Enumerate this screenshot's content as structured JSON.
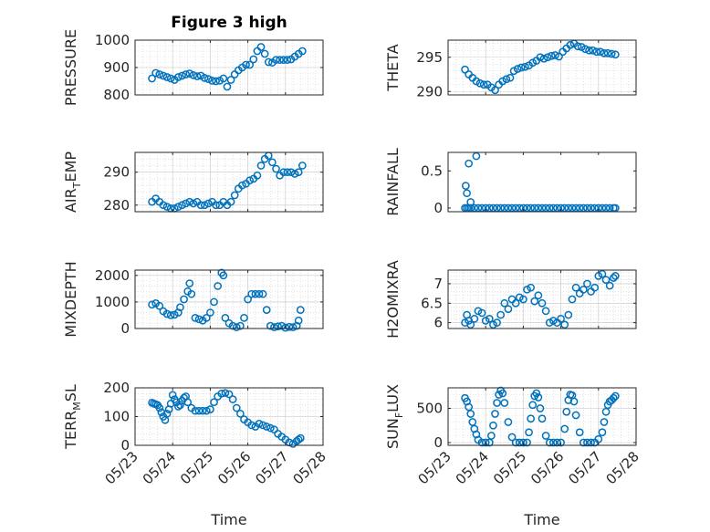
{
  "figure": {
    "title": "Figure 3 high",
    "xlabel": "Time",
    "x_ticklabels": [
      "05/23",
      "05/24",
      "05/25",
      "05/26",
      "05/27",
      "05/28"
    ],
    "marker_color": "#0072bd"
  },
  "chart_data": [
    {
      "id": "pressure",
      "type": "scatter",
      "ylabel": "PRESSURE",
      "ylim": [
        800,
        1000
      ],
      "yticks": [
        800,
        900,
        1000
      ],
      "xlim": [
        0,
        5
      ],
      "grid": true,
      "x": [
        0.45,
        0.55,
        0.65,
        0.75,
        0.85,
        0.95,
        1.05,
        1.15,
        1.25,
        1.35,
        1.45,
        1.55,
        1.65,
        1.75,
        1.85,
        1.95,
        2.05,
        2.15,
        2.25,
        2.35,
        2.45,
        2.55,
        2.65,
        2.75,
        2.85,
        2.95,
        3.05,
        3.15,
        3.25,
        3.35,
        3.45,
        3.55,
        3.65,
        3.75,
        3.85,
        3.95,
        4.05,
        4.15,
        4.25,
        4.35,
        4.45
      ],
      "y": [
        860,
        880,
        875,
        870,
        865,
        860,
        855,
        865,
        870,
        875,
        878,
        872,
        868,
        870,
        862,
        858,
        852,
        850,
        852,
        860,
        830,
        855,
        875,
        890,
        900,
        910,
        910,
        930,
        960,
        975,
        950,
        920,
        918,
        928,
        928,
        928,
        928,
        930,
        940,
        950,
        960
      ]
    },
    {
      "id": "theta",
      "type": "scatter",
      "ylabel": "THETA",
      "ylim": [
        289.5,
        297.5
      ],
      "yticks": [
        290,
        295
      ],
      "xlim": [
        0,
        5
      ],
      "grid": true,
      "x": [
        0.45,
        0.55,
        0.65,
        0.75,
        0.85,
        0.95,
        1.05,
        1.15,
        1.25,
        1.35,
        1.45,
        1.55,
        1.65,
        1.75,
        1.85,
        1.95,
        2.05,
        2.15,
        2.25,
        2.35,
        2.45,
        2.55,
        2.65,
        2.75,
        2.85,
        2.95,
        3.05,
        3.15,
        3.25,
        3.35,
        3.45,
        3.55,
        3.65,
        3.75,
        3.85,
        3.95,
        4.05,
        4.15,
        4.25,
        4.35,
        4.45
      ],
      "y": [
        293.2,
        292.5,
        292.0,
        291.5,
        291.2,
        291.0,
        291.0,
        290.6,
        290.2,
        291.0,
        291.5,
        291.8,
        292.0,
        293.0,
        293.3,
        293.5,
        293.6,
        293.8,
        294.2,
        294.5,
        295.0,
        294.8,
        295.0,
        295.2,
        295.3,
        295.1,
        295.8,
        296.3,
        296.8,
        297.0,
        296.6,
        296.5,
        296.2,
        296.0,
        296.0,
        295.8,
        295.8,
        295.6,
        295.6,
        295.5,
        295.4
      ]
    },
    {
      "id": "air_temp",
      "type": "scatter",
      "ylabel": "AIR_TEMP",
      "ylim": [
        278,
        296
      ],
      "yticks": [
        280,
        290
      ],
      "xlim": [
        0,
        5
      ],
      "grid": true,
      "x": [
        0.45,
        0.55,
        0.65,
        0.75,
        0.85,
        0.95,
        1.05,
        1.15,
        1.25,
        1.35,
        1.45,
        1.55,
        1.65,
        1.75,
        1.85,
        1.95,
        2.05,
        2.15,
        2.25,
        2.35,
        2.45,
        2.55,
        2.65,
        2.75,
        2.85,
        2.95,
        3.05,
        3.15,
        3.25,
        3.35,
        3.45,
        3.55,
        3.65,
        3.75,
        3.85,
        3.95,
        4.05,
        4.15,
        4.25,
        4.35,
        4.45
      ],
      "y": [
        281,
        282,
        281,
        280,
        279.5,
        279,
        279,
        279.5,
        280,
        280.5,
        281,
        280.5,
        281,
        280,
        280,
        280.5,
        281,
        280,
        280,
        281,
        280,
        281,
        283,
        285,
        286,
        286.5,
        287.5,
        288,
        289,
        292,
        294,
        295,
        293,
        291,
        289,
        290,
        290,
        290,
        289.5,
        290,
        292
      ]
    },
    {
      "id": "rainfall",
      "type": "scatter",
      "ylabel": "RAINFALL",
      "ylim": [
        -0.05,
        0.75
      ],
      "yticks": [
        0,
        0.5
      ],
      "xlim": [
        0,
        5
      ],
      "grid": false,
      "x": [
        0.45,
        0.5,
        0.55,
        0.6,
        0.7,
        0.8,
        0.9,
        1.0,
        1.1,
        1.2,
        1.3,
        1.4,
        1.5,
        1.6,
        1.7,
        1.8,
        1.9,
        2.0,
        2.1,
        2.2,
        2.3,
        2.4,
        2.5,
        2.6,
        2.7,
        2.8,
        2.9,
        3.0,
        3.1,
        3.2,
        3.3,
        3.4,
        3.5,
        3.6,
        3.7,
        3.8,
        3.9,
        4.0,
        4.1,
        4.2,
        4.3,
        4.4,
        4.45,
        0.47,
        0.5,
        0.55,
        0.6,
        0.75
      ],
      "y": [
        0,
        0,
        0,
        0,
        0,
        0,
        0,
        0,
        0,
        0,
        0,
        0,
        0,
        0,
        0,
        0,
        0,
        0,
        0,
        0,
        0,
        0,
        0,
        0,
        0,
        0,
        0,
        0,
        0,
        0,
        0,
        0,
        0,
        0,
        0,
        0,
        0,
        0,
        0,
        0,
        0,
        0,
        0,
        0.3,
        0.2,
        0.6,
        0.08,
        0.7
      ]
    },
    {
      "id": "mixdepth",
      "type": "scatter",
      "ylabel": "MIXDEPTH",
      "ylim": [
        0,
        2200
      ],
      "yticks": [
        0,
        1000,
        2000
      ],
      "xlim": [
        0,
        5
      ],
      "grid": true,
      "x": [
        0.45,
        0.55,
        0.65,
        0.75,
        0.85,
        0.95,
        1.05,
        1.15,
        1.2,
        1.3,
        1.4,
        1.45,
        1.5,
        1.6,
        1.7,
        1.8,
        1.9,
        2.0,
        2.1,
        2.2,
        2.3,
        2.35,
        2.4,
        2.5,
        2.6,
        2.7,
        2.8,
        2.9,
        3.0,
        3.1,
        3.2,
        3.3,
        3.4,
        3.5,
        3.6,
        3.7,
        3.8,
        3.9,
        4.0,
        4.1,
        4.2,
        4.3,
        4.35,
        4.4
      ],
      "y": [
        900,
        950,
        850,
        650,
        550,
        500,
        520,
        600,
        800,
        1100,
        1400,
        1700,
        1300,
        400,
        350,
        300,
        400,
        600,
        1000,
        1600,
        2100,
        2000,
        400,
        200,
        100,
        50,
        100,
        400,
        1100,
        1300,
        1300,
        1300,
        1300,
        700,
        100,
        50,
        80,
        100,
        30,
        60,
        50,
        100,
        300,
        700
      ]
    },
    {
      "id": "h2omixra",
      "type": "scatter",
      "ylabel": "H2OMIXRA",
      "ylim": [
        5.85,
        7.35
      ],
      "yticks": [
        6,
        6.5,
        7
      ],
      "xlim": [
        0,
        5
      ],
      "grid": true,
      "x": [
        0.45,
        0.5,
        0.55,
        0.6,
        0.7,
        0.8,
        0.9,
        1.0,
        1.1,
        1.2,
        1.3,
        1.4,
        1.5,
        1.6,
        1.7,
        1.8,
        1.9,
        2.0,
        2.1,
        2.2,
        2.3,
        2.4,
        2.5,
        2.6,
        2.7,
        2.8,
        2.9,
        3.0,
        3.1,
        3.2,
        3.3,
        3.4,
        3.5,
        3.6,
        3.7,
        3.8,
        3.9,
        4.0,
        4.1,
        4.2,
        4.3,
        4.4,
        4.45
      ],
      "y": [
        6.0,
        6.2,
        6.05,
        5.95,
        6.1,
        6.3,
        6.25,
        6.05,
        6.1,
        5.95,
        6.0,
        6.2,
        6.5,
        6.35,
        6.6,
        6.5,
        6.65,
        6.6,
        6.85,
        6.9,
        6.55,
        6.7,
        6.5,
        6.3,
        6.0,
        6.05,
        6.0,
        6.1,
        5.95,
        6.2,
        6.6,
        6.9,
        6.75,
        6.85,
        7.0,
        6.8,
        6.9,
        7.2,
        7.25,
        7.1,
        6.95,
        7.15,
        7.2
      ]
    },
    {
      "id": "terr_msl",
      "type": "scatter",
      "ylabel": "TERR_MSL",
      "ylim": [
        0,
        200
      ],
      "yticks": [
        0,
        100,
        200
      ],
      "xlim": [
        0,
        5
      ],
      "grid": true,
      "x": [
        0.45,
        0.5,
        0.55,
        0.6,
        0.65,
        0.7,
        0.75,
        0.8,
        0.85,
        0.9,
        0.95,
        1.0,
        1.05,
        1.1,
        1.15,
        1.2,
        1.25,
        1.3,
        1.35,
        1.4,
        1.5,
        1.6,
        1.7,
        1.8,
        1.9,
        2.0,
        2.1,
        2.2,
        2.3,
        2.4,
        2.5,
        2.6,
        2.7,
        2.8,
        2.9,
        3.0,
        3.1,
        3.2,
        3.3,
        3.4,
        3.5,
        3.6,
        3.7,
        3.8,
        3.9,
        4.0,
        4.1,
        4.2,
        4.3,
        4.35,
        4.4
      ],
      "y": [
        148,
        145,
        143,
        140,
        130,
        115,
        100,
        88,
        110,
        125,
        145,
        175,
        160,
        150,
        135,
        140,
        155,
        165,
        170,
        150,
        130,
        120,
        120,
        120,
        120,
        125,
        150,
        170,
        180,
        182,
        178,
        160,
        130,
        110,
        90,
        80,
        70,
        65,
        75,
        70,
        65,
        60,
        55,
        40,
        30,
        20,
        10,
        5,
        15,
        20,
        25
      ]
    },
    {
      "id": "sun_flux",
      "type": "scatter",
      "ylabel": "SUN_FLUX",
      "ylim": [
        -40,
        800
      ],
      "yticks": [
        0,
        500
      ],
      "xlim": [
        0,
        5
      ],
      "grid": true,
      "x": [
        0.45,
        0.5,
        0.55,
        0.6,
        0.65,
        0.7,
        0.75,
        0.8,
        0.9,
        1.0,
        1.1,
        1.15,
        1.2,
        1.25,
        1.3,
        1.35,
        1.4,
        1.45,
        1.5,
        1.6,
        1.7,
        1.8,
        1.9,
        2.0,
        2.1,
        2.15,
        2.2,
        2.25,
        2.3,
        2.35,
        2.4,
        2.45,
        2.5,
        2.6,
        2.7,
        2.8,
        2.9,
        3.0,
        3.1,
        3.15,
        3.2,
        3.25,
        3.3,
        3.35,
        3.4,
        3.5,
        3.6,
        3.7,
        3.8,
        3.9,
        4.0,
        4.1,
        4.15,
        4.2,
        4.25,
        4.3,
        4.35,
        4.4,
        4.45
      ],
      "y": [
        650,
        600,
        520,
        420,
        300,
        200,
        120,
        40,
        0,
        0,
        0,
        100,
        250,
        420,
        580,
        700,
        760,
        720,
        580,
        300,
        80,
        0,
        0,
        0,
        0,
        150,
        350,
        550,
        680,
        720,
        660,
        500,
        350,
        100,
        0,
        0,
        0,
        0,
        200,
        450,
        620,
        700,
        690,
        600,
        400,
        150,
        0,
        0,
        0,
        0,
        50,
        150,
        300,
        450,
        550,
        600,
        620,
        650,
        680
      ]
    }
  ]
}
